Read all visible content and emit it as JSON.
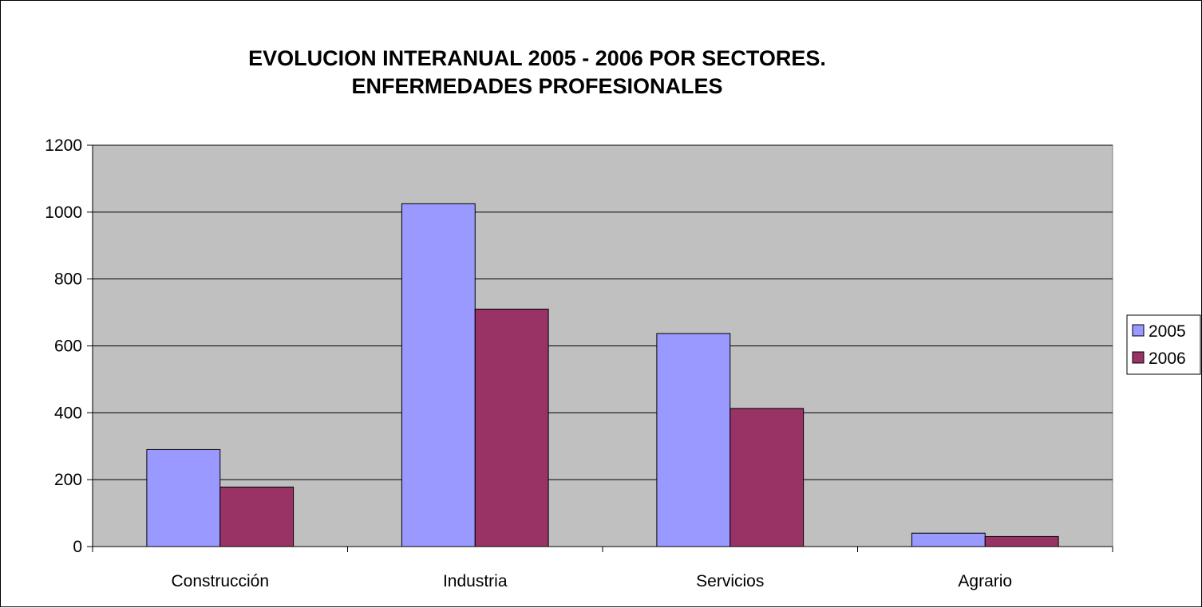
{
  "chart_data": {
    "type": "bar",
    "title": [
      "EVOLUCION INTERANUAL 2005 - 2006 POR SECTORES.",
      "ENFERMEDADES PROFESIONALES"
    ],
    "xlabel": "",
    "ylabel": "",
    "categories": [
      "Construcción",
      "Industria",
      "Servicios",
      "Agrario"
    ],
    "series": [
      {
        "name": "2005",
        "values": [
          290,
          1025,
          637,
          40
        ],
        "color": "#9999ff"
      },
      {
        "name": "2006",
        "values": [
          178,
          710,
          413,
          30
        ],
        "color": "#993366"
      }
    ],
    "ylim": [
      0,
      1200
    ],
    "yticks": [
      0,
      200,
      400,
      600,
      800,
      1000,
      1200
    ],
    "grid": true,
    "plot_background": "#c0c0c0",
    "legend_position": "right"
  }
}
